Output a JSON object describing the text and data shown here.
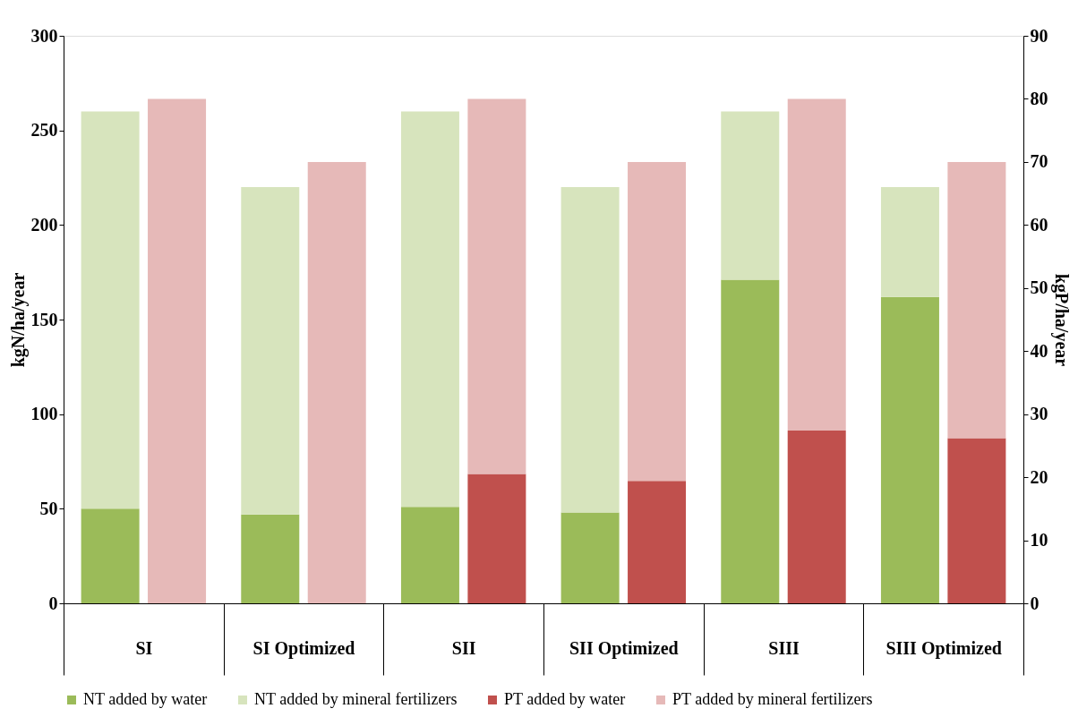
{
  "chart_data": {
    "type": "bar",
    "stacked": true,
    "categories": [
      "SI",
      "SI Optimized",
      "SII",
      "SII Optimized",
      "SIII",
      "SIII Optimized"
    ],
    "series": [
      {
        "name": "NT added by water",
        "color": "#9bbb59",
        "axis": "y",
        "values": [
          50,
          47,
          51,
          48,
          171,
          162
        ]
      },
      {
        "name": "NT added by mineral fertilizers",
        "color": "#d7e4bd",
        "axis": "y",
        "values": [
          210,
          173,
          209,
          172,
          89,
          58
        ]
      },
      {
        "name": "PT added by water",
        "color": "#c0504d",
        "axis": "y2",
        "values": [
          0,
          0,
          20.5,
          19.4,
          27.4,
          26.2
        ]
      },
      {
        "name": "PT added by mineral fertilizers",
        "color": "#e6b9b8",
        "axis": "y2",
        "values": [
          80,
          70,
          59.5,
          50.6,
          52.6,
          43.8
        ]
      }
    ],
    "ylabel": "kgN/ha/year",
    "y2label": "kgP/ha/year",
    "ylim": [
      0,
      300
    ],
    "yticks": [
      0,
      50,
      100,
      150,
      200,
      250,
      300
    ],
    "y2lim": [
      0,
      90
    ],
    "y2ticks": [
      0,
      10,
      20,
      30,
      40,
      50,
      60,
      70,
      80,
      90
    ],
    "legend": "bottom",
    "grid": false
  }
}
